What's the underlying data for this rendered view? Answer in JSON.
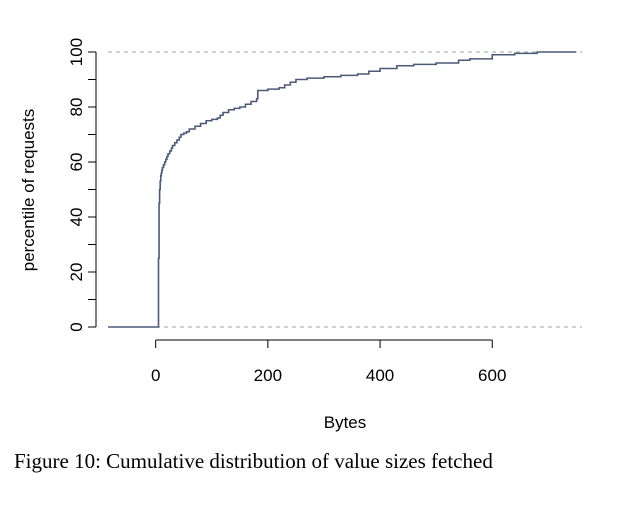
{
  "chart_data": {
    "type": "line",
    "subtype": "step-cdf",
    "title": "",
    "xlabel": "Bytes",
    "ylabel": "percentile of requests",
    "xlim": [
      -85,
      760
    ],
    "ylim": [
      0,
      100
    ],
    "x_ticks": [
      0,
      200,
      400,
      600
    ],
    "y_ticks": [
      0,
      20,
      40,
      60,
      80,
      100
    ],
    "grid": false,
    "legend": "none",
    "reference_lines": [
      0,
      100
    ],
    "line_color": "#4a5a7a",
    "reference_line_color": "#a0a0a0",
    "series": [
      {
        "x": [
          -85,
          5,
          5,
          6,
          6,
          7,
          8,
          9,
          10,
          11,
          12,
          14,
          16,
          18,
          20,
          22,
          25,
          28,
          30,
          34,
          38,
          42,
          45,
          50,
          55,
          60,
          70,
          80,
          90,
          100,
          110,
          115,
          120,
          130,
          140,
          150,
          160,
          170,
          180,
          182,
          182,
          200,
          220,
          230,
          240,
          250,
          270,
          300,
          330,
          360,
          380,
          400,
          430,
          460,
          500,
          540,
          560,
          600,
          600,
          640,
          680,
          720,
          750
        ],
        "y": [
          0,
          0,
          25,
          25,
          45,
          50,
          53,
          55,
          56,
          57,
          58,
          59,
          60,
          61,
          62,
          63,
          64,
          65,
          66,
          67,
          68,
          69,
          70,
          70.5,
          71,
          72,
          73,
          74,
          75,
          75.5,
          76,
          77,
          78,
          79,
          79.5,
          80,
          81,
          82,
          83,
          83,
          86,
          86.5,
          87,
          88,
          89,
          90,
          90.5,
          91,
          91.5,
          92,
          93,
          94,
          95,
          95.5,
          96,
          97,
          97.5,
          98,
          99,
          99.5,
          100,
          100,
          100
        ]
      }
    ]
  },
  "caption": {
    "text": "Figure 10: Cumulative distribution of value sizes fetched"
  }
}
